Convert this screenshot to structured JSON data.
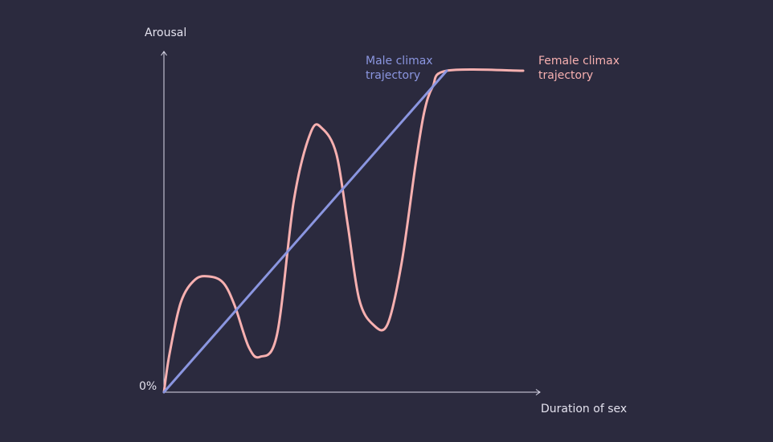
{
  "chart_data": {
    "type": "line",
    "title": "",
    "ylabel": "Arousal",
    "xlabel": "Duration of sex",
    "origin_label": "0%",
    "axis_color": "#dcdaea",
    "series": [
      {
        "name": "Male climax\ntrajectory",
        "color": "#8b96e0",
        "label_color": "#8b96e0",
        "x": [
          0,
          100
        ],
        "y": [
          0,
          100
        ]
      },
      {
        "name": "Female climax\ntrajectory",
        "color": "#f7b0b0",
        "label_color": "#f7b0b0",
        "x": [
          0,
          2,
          6,
          11,
          16,
          21,
          25,
          30,
          34,
          40,
          46,
          52,
          56,
          61,
          65,
          69,
          74,
          79,
          84,
          89,
          92,
          95,
          100,
          127
        ],
        "y": [
          0,
          12,
          28,
          35,
          36,
          34,
          27,
          14,
          11,
          18,
          60,
          81,
          82,
          74,
          52,
          29,
          21,
          21,
          40,
          71,
          87,
          95,
          100,
          100
        ],
        "end_x": 127
      }
    ],
    "xlim": [
      0,
      130
    ],
    "ylim": [
      0,
      110
    ],
    "grid": false
  }
}
